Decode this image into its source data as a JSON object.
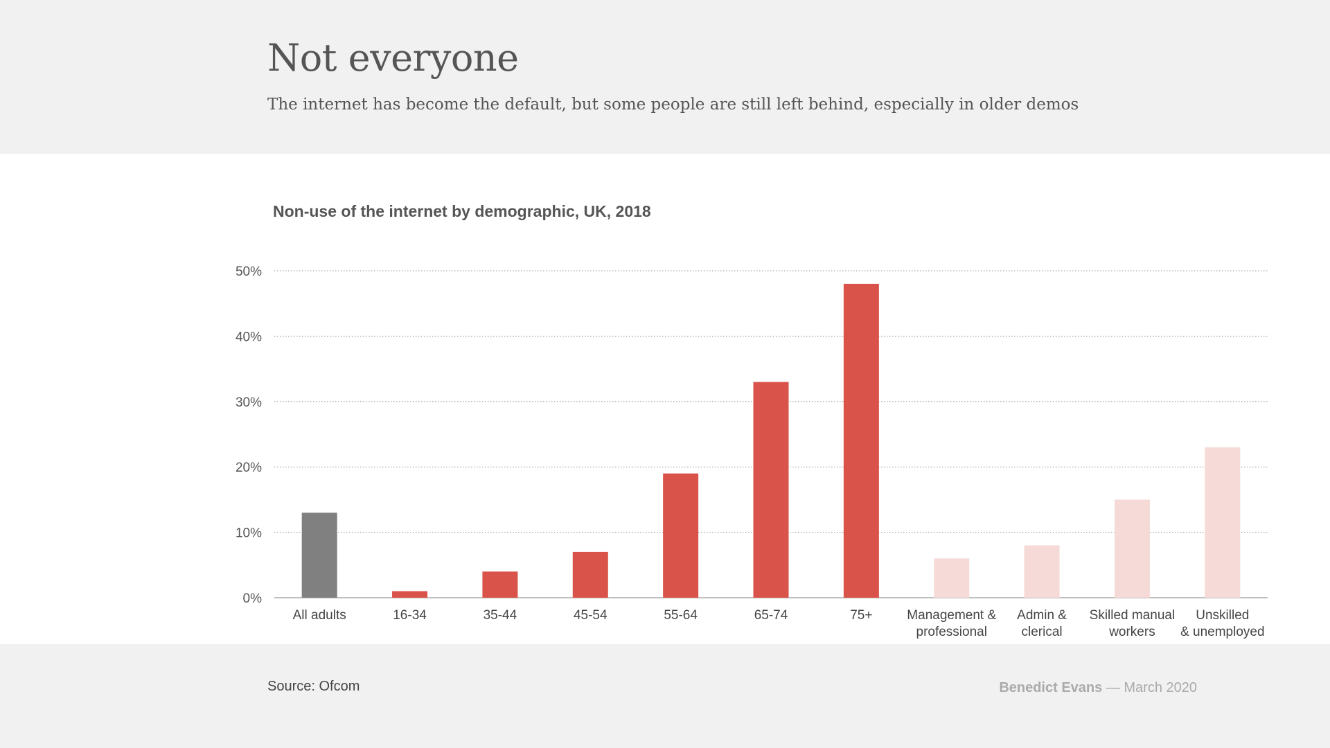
{
  "header": {
    "title": "Not everyone",
    "subtitle": "The internet has become the default, but some people are still left behind, especially in older demos"
  },
  "chart_data": {
    "type": "bar",
    "title": "Non-use of the internet by demographic, UK, 2018",
    "xlabel": "",
    "ylabel": "",
    "ylim": [
      0,
      50
    ],
    "yticks": [
      "0%",
      "10%",
      "20%",
      "30%",
      "40%",
      "50%"
    ],
    "grid": true,
    "categories": [
      [
        "All adults"
      ],
      [
        "16-34"
      ],
      [
        "35-44"
      ],
      [
        "45-54"
      ],
      [
        "55-64"
      ],
      [
        "65-74"
      ],
      [
        "75+"
      ],
      [
        "Management &",
        "professional"
      ],
      [
        "Admin &",
        "clerical"
      ],
      [
        "Skilled manual",
        "workers"
      ],
      [
        "Unskilled",
        "& unemployed"
      ]
    ],
    "values": [
      13,
      1,
      4,
      7,
      19,
      33,
      48,
      6,
      8,
      15,
      23
    ],
    "colors": [
      "#808080",
      "#d9534a",
      "#d9534a",
      "#d9534a",
      "#d9534a",
      "#d9534a",
      "#d9534a",
      "#f5dad7",
      "#f5dad7",
      "#f5dad7",
      "#f5dad7"
    ]
  },
  "footer": {
    "source": "Source: Ofcom",
    "author": "Benedict Evans",
    "date": "— March 2020"
  }
}
